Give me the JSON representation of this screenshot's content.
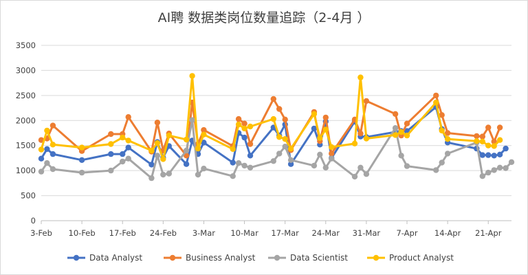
{
  "chart_data": {
    "type": "line",
    "title": "AI聘 数据类岗位数量追踪（2-4月 ）",
    "ylim": [
      0,
      3500
    ],
    "yticks": [
      "0",
      "500",
      "1000",
      "1500",
      "2000",
      "2500",
      "3000",
      "3500"
    ],
    "ytick_values": [
      0,
      500,
      1000,
      1500,
      2000,
      2500,
      3000,
      3500
    ],
    "xlim_days": [
      0,
      81
    ],
    "xtick_labels": [
      "3-Feb",
      "10-Feb",
      "17-Feb",
      "24-Feb",
      "3-Mar",
      "10-Mar",
      "17-Mar",
      "24-Mar",
      "31-Mar",
      "7-Apr",
      "14-Apr",
      "21-Apr"
    ],
    "xtick_dates": [
      "2020-02-03",
      "2020-02-10",
      "2020-02-17",
      "2020-02-24",
      "2020-03-02",
      "2020-03-09",
      "2020-03-16",
      "2020-03-23",
      "2020-03-30",
      "2020-04-06",
      "2020-04-13",
      "2020-04-20"
    ],
    "grid": true,
    "legend_position": "bottom",
    "x": [
      "2020-02-03",
      "2020-02-04",
      "2020-02-05",
      "2020-02-10",
      "2020-02-15",
      "2020-02-17",
      "2020-02-18",
      "2020-02-22",
      "2020-02-23",
      "2020-02-24",
      "2020-02-25",
      "2020-02-28",
      "2020-02-29",
      "2020-03-01",
      "2020-03-02",
      "2020-03-07",
      "2020-03-08",
      "2020-03-09",
      "2020-03-10",
      "2020-03-14",
      "2020-03-15",
      "2020-03-16",
      "2020-03-17",
      "2020-03-21",
      "2020-03-22",
      "2020-03-23",
      "2020-03-24",
      "2020-03-28",
      "2020-03-29",
      "2020-03-30",
      "2020-04-04",
      "2020-04-05",
      "2020-04-06",
      "2020-04-11",
      "2020-04-12",
      "2020-04-13",
      "2020-04-18",
      "2020-04-19",
      "2020-04-20",
      "2020-04-21",
      "2020-04-22",
      "2020-04-23",
      "2020-04-24",
      "2020-04-25",
      "2020-04-26"
    ],
    "series": [
      {
        "name": "Data Analyst",
        "color": "#4472C4",
        "values": [
          1240,
          1430,
          1330,
          1210,
          1330,
          1330,
          1460,
          1120,
          1570,
          1260,
          1490,
          1130,
          1600,
          1330,
          1560,
          1160,
          1750,
          1660,
          1300,
          1860,
          1700,
          1920,
          1130,
          1840,
          1520,
          1980,
          1250,
          1980,
          1680,
          1670,
          1770,
          1790,
          1790,
          2270,
          1830,
          1560,
          1440,
          1310,
          1310,
          1300,
          1320,
          1440,
          null,
          null,
          null
        ]
      },
      {
        "name": "Business Analyst",
        "color": "#ED7D31",
        "values": [
          1610,
          1640,
          1900,
          1390,
          1730,
          1730,
          2070,
          1380,
          1960,
          1400,
          1740,
          1300,
          2360,
          1530,
          1810,
          1490,
          2030,
          1940,
          1530,
          2430,
          2230,
          2020,
          1410,
          2170,
          1590,
          2060,
          1340,
          2020,
          1740,
          2390,
          2130,
          1700,
          1940,
          2500,
          2110,
          1750,
          1690,
          1680,
          1860,
          1580,
          1860,
          null,
          null,
          null,
          null
        ]
      },
      {
        "name": "Data Scientist",
        "color": "#A5A5A5",
        "values": [
          980,
          1150,
          1030,
          960,
          1000,
          1180,
          1240,
          850,
          1300,
          920,
          940,
          1400,
          2010,
          920,
          1040,
          890,
          1150,
          1100,
          1060,
          1190,
          1340,
          1480,
          1210,
          1100,
          1320,
          1060,
          1240,
          880,
          1060,
          930,
          1850,
          1300,
          1090,
          1010,
          1160,
          1340,
          1560,
          890,
          960,
          1010,
          1060,
          1050,
          1170,
          null,
          null
        ]
      },
      {
        "name": "Product Analyst",
        "color": "#FFC000",
        "values": [
          1420,
          1800,
          1520,
          1460,
          1530,
          1660,
          1600,
          1400,
          1550,
          1230,
          1700,
          1620,
          2890,
          1440,
          1720,
          1430,
          1920,
          1840,
          1880,
          2030,
          1670,
          1630,
          1440,
          2130,
          1650,
          1820,
          1470,
          1540,
          2860,
          1640,
          1710,
          1770,
          1700,
          2360,
          1800,
          1630,
          1590,
          1580,
          1500,
          1490,
          1610,
          null,
          null,
          null,
          null
        ]
      }
    ]
  }
}
